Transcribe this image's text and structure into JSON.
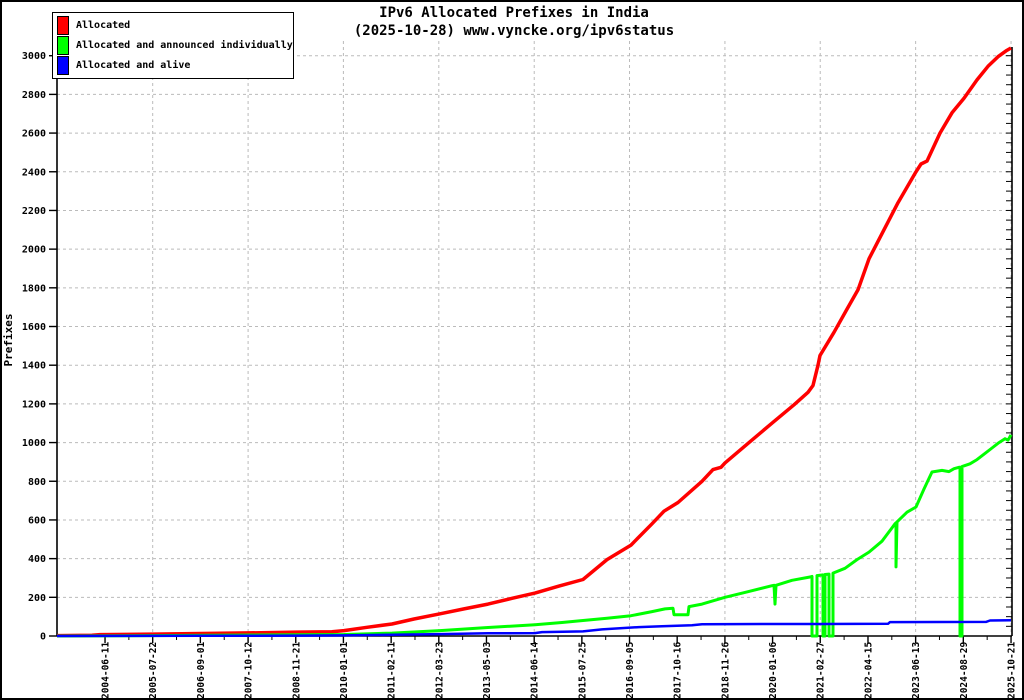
{
  "title": {
    "line1": "IPv6 Allocated Prefixes in India",
    "line2": "(2025-10-28) www.vyncke.org/ipv6status"
  },
  "legend": {
    "items": [
      {
        "label": "Allocated",
        "color": "#ff0000"
      },
      {
        "label": "Allocated and announced individually",
        "color": "#00ff00"
      },
      {
        "label": "Allocated and alive",
        "color": "#0000ff"
      }
    ]
  },
  "colors": {
    "background": "#ffffff",
    "border": "#000000",
    "grid": "#bbbbbb",
    "allocated": "#ff0000",
    "announced": "#00ff00",
    "alive": "#0000ff"
  },
  "chart_data": {
    "type": "line",
    "title": "IPv6 Allocated Prefixes in India",
    "subtitle": "(2025-10-28) www.vyncke.org/ipv6status",
    "ylabel": "Prefixes",
    "xlabel": "",
    "ylim": [
      0,
      3045
    ],
    "yticks": [
      0,
      200,
      400,
      600,
      800,
      1000,
      1200,
      1400,
      1600,
      1800,
      2000,
      2200,
      2400,
      2600,
      2800,
      3000
    ],
    "y_minor_step": 50,
    "grid": {
      "horizontal": true,
      "vertical": "every-other-xtick"
    },
    "grid_x_tick_indices": [
      1,
      3,
      5,
      7,
      9,
      11,
      13,
      15,
      17,
      19
    ],
    "legend_position": "top-left",
    "xticks": [
      {
        "label": "2004-06-11",
        "t": 0.0503
      },
      {
        "label": "2005-07-22",
        "t": 0.1002
      },
      {
        "label": "2006-09-01",
        "t": 0.1501
      },
      {
        "label": "2007-10-12",
        "t": 0.2001
      },
      {
        "label": "2008-11-21",
        "t": 0.25
      },
      {
        "label": "2010-01-01",
        "t": 0.2999
      },
      {
        "label": "2011-02-11",
        "t": 0.3499
      },
      {
        "label": "2012-03-23",
        "t": 0.3998
      },
      {
        "label": "2013-05-03",
        "t": 0.4497
      },
      {
        "label": "2014-06-14",
        "t": 0.4997
      },
      {
        "label": "2015-07-25",
        "t": 0.5496
      },
      {
        "label": "2016-09-05",
        "t": 0.5995
      },
      {
        "label": "2017-10-16",
        "t": 0.6494
      },
      {
        "label": "2018-11-26",
        "t": 0.6994
      },
      {
        "label": "2020-01-06",
        "t": 0.7493
      },
      {
        "label": "2021-02-27",
        "t": 0.7992
      },
      {
        "label": "2022-04-15",
        "t": 0.8492
      },
      {
        "label": "2023-06-13",
        "t": 0.8991
      },
      {
        "label": "2024-08-29",
        "t": 0.949
      },
      {
        "label": "2025-10-21",
        "t": 0.999
      }
    ],
    "series": [
      {
        "name": "Allocated",
        "color": "#ff0000",
        "width": 3.5,
        "points": [
          [
            0,
            2
          ],
          [
            0.0366,
            4
          ],
          [
            0.045,
            7
          ],
          [
            0.1005,
            10
          ],
          [
            0.1508,
            13
          ],
          [
            0.201,
            16
          ],
          [
            0.2513,
            20
          ],
          [
            0.288,
            22
          ],
          [
            0.3005,
            28
          ],
          [
            0.3246,
            45
          ],
          [
            0.3508,
            62
          ],
          [
            0.3738,
            88
          ],
          [
            0.401,
            115
          ],
          [
            0.4262,
            140
          ],
          [
            0.4513,
            165
          ],
          [
            0.4764,
            195
          ],
          [
            0.5005,
            222
          ],
          [
            0.5257,
            258
          ],
          [
            0.5508,
            292
          ],
          [
            0.5759,
            395
          ],
          [
            0.601,
            470
          ],
          [
            0.623,
            580
          ],
          [
            0.6356,
            645
          ],
          [
            0.6503,
            690
          ],
          [
            0.6754,
            800
          ],
          [
            0.6869,
            860
          ],
          [
            0.6953,
            872
          ],
          [
            0.6995,
            895
          ],
          [
            0.7246,
            1000
          ],
          [
            0.7497,
            1105
          ],
          [
            0.7717,
            1195
          ],
          [
            0.7864,
            1260
          ],
          [
            0.7916,
            1295
          ],
          [
            0.7969,
            1400
          ],
          [
            0.799,
            1450
          ],
          [
            0.8136,
            1570
          ],
          [
            0.8272,
            1690
          ],
          [
            0.8387,
            1790
          ],
          [
            0.8503,
            1950
          ],
          [
            0.8649,
            2090
          ],
          [
            0.8806,
            2240
          ],
          [
            0.8995,
            2400
          ],
          [
            0.9047,
            2440
          ],
          [
            0.911,
            2455
          ],
          [
            0.9246,
            2600
          ],
          [
            0.9372,
            2705
          ],
          [
            0.9497,
            2780
          ],
          [
            0.9633,
            2875
          ],
          [
            0.9749,
            2945
          ],
          [
            0.9853,
            2995
          ],
          [
            0.9937,
            3025
          ],
          [
            0.999,
            3040
          ]
        ]
      },
      {
        "name": "Allocated and announced individually",
        "color": "#00ff00",
        "width": 3,
        "points": [
          [
            0,
            0
          ],
          [
            0.0995,
            2
          ],
          [
            0.2042,
            5
          ],
          [
            0.3005,
            8
          ],
          [
            0.3508,
            15
          ],
          [
            0.401,
            28
          ],
          [
            0.4513,
            44
          ],
          [
            0.5005,
            58
          ],
          [
            0.5288,
            70
          ],
          [
            0.5508,
            80
          ],
          [
            0.5759,
            92
          ],
          [
            0.601,
            105
          ],
          [
            0.623,
            126
          ],
          [
            0.6366,
            140
          ],
          [
            0.645,
            143
          ],
          [
            0.6461,
            110
          ],
          [
            0.6607,
            110
          ],
          [
            0.6618,
            152
          ],
          [
            0.6754,
            165
          ],
          [
            0.6995,
            200
          ],
          [
            0.7225,
            228
          ],
          [
            0.7487,
            260
          ],
          [
            0.7508,
            262
          ],
          [
            0.7518,
            165
          ],
          [
            0.7529,
            262
          ],
          [
            0.7696,
            288
          ],
          [
            0.7885,
            305
          ],
          [
            0.7906,
            308
          ],
          [
            0.7906,
            0
          ],
          [
            0.7958,
            0
          ],
          [
            0.7958,
            312
          ],
          [
            0.8021,
            316
          ],
          [
            0.8021,
            0
          ],
          [
            0.8042,
            0
          ],
          [
            0.8042,
            318
          ],
          [
            0.8084,
            320
          ],
          [
            0.8084,
            0
          ],
          [
            0.8126,
            0
          ],
          [
            0.8126,
            325
          ],
          [
            0.8251,
            350
          ],
          [
            0.8377,
            395
          ],
          [
            0.8503,
            434
          ],
          [
            0.8639,
            490
          ],
          [
            0.8775,
            580
          ],
          [
            0.8785,
            585
          ],
          [
            0.8785,
            357
          ],
          [
            0.8796,
            590
          ],
          [
            0.8901,
            640
          ],
          [
            0.8995,
            667
          ],
          [
            0.9079,
            760
          ],
          [
            0.9162,
            848
          ],
          [
            0.9267,
            856
          ],
          [
            0.934,
            850
          ],
          [
            0.9393,
            865
          ],
          [
            0.9445,
            872
          ],
          [
            0.9455,
            872
          ],
          [
            0.9455,
            0
          ],
          [
            0.9476,
            0
          ],
          [
            0.9476,
            876
          ],
          [
            0.956,
            890
          ],
          [
            0.9633,
            912
          ],
          [
            0.9707,
            940
          ],
          [
            0.9791,
            972
          ],
          [
            0.9864,
            1000
          ],
          [
            0.9927,
            1020
          ],
          [
            0.9958,
            1012
          ],
          [
            0.999,
            1040
          ]
        ]
      },
      {
        "name": "Allocated and alive",
        "color": "#0000ff",
        "width": 2.5,
        "points": [
          [
            0,
            0
          ],
          [
            0.1518,
            1
          ],
          [
            0.2565,
            2
          ],
          [
            0.3005,
            3
          ],
          [
            0.3508,
            6
          ],
          [
            0.401,
            10
          ],
          [
            0.4513,
            14
          ],
          [
            0.5005,
            15
          ],
          [
            0.5079,
            20
          ],
          [
            0.5508,
            24
          ],
          [
            0.5707,
            34
          ],
          [
            0.6094,
            46
          ],
          [
            0.6335,
            50
          ],
          [
            0.6649,
            56
          ],
          [
            0.6754,
            61
          ],
          [
            0.7382,
            62
          ],
          [
            0.801,
            62
          ],
          [
            0.8702,
            63
          ],
          [
            0.8723,
            72
          ],
          [
            0.9728,
            73
          ],
          [
            0.977,
            80
          ],
          [
            0.999,
            81
          ]
        ]
      }
    ]
  }
}
